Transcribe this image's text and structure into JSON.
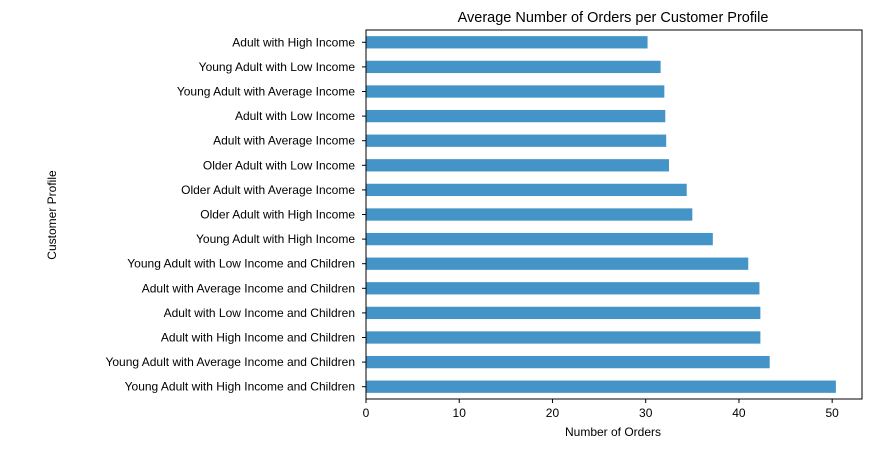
{
  "chart_data": {
    "type": "bar",
    "orientation": "horizontal",
    "title": "Average Number of Orders per Customer Profile",
    "xlabel": "Number of Orders",
    "ylabel": "Customer Profile",
    "xlim": [
      0,
      53.2
    ],
    "xticks": [
      "0",
      "10",
      "20",
      "30",
      "40",
      "50"
    ],
    "grid": false,
    "bar_color": "#4594C8",
    "categories": [
      "Adult with High Income",
      "Young Adult with Low Income",
      "Young Adult with Average Income",
      "Adult with Low Income",
      "Adult with Average Income",
      "Older Adult with Low Income",
      "Older Adult with Average Income",
      "Older Adult with High Income",
      "Young Adult with High Income",
      "Young Adult with Low Income and Children",
      "Adult with Average Income and Children",
      "Adult with Low Income and Children",
      "Adult with High Income and Children",
      "Young Adult with Average Income and Children",
      "Young Adult with High Income and Children"
    ],
    "values": [
      30.2,
      31.6,
      32.0,
      32.1,
      32.2,
      32.5,
      34.4,
      35.0,
      37.2,
      41.0,
      42.2,
      42.3,
      42.3,
      43.3,
      50.4
    ]
  }
}
